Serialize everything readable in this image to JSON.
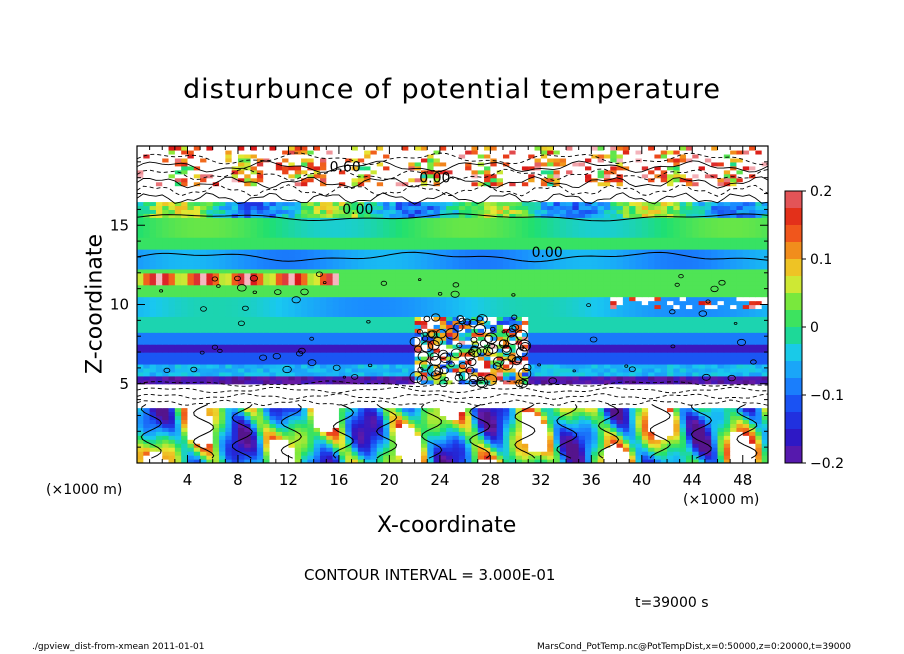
{
  "chart_data": {
    "type": "heatmap",
    "title": "disturbunce of potential temperature",
    "xlabel": "X-coordinate",
    "ylabel": "Z-coordinate",
    "x_unit": "(×1000 m)",
    "xlim": [
      0,
      50
    ],
    "ylim": [
      0,
      20
    ],
    "x_ticks": [
      4,
      8,
      12,
      16,
      20,
      24,
      28,
      32,
      36,
      40,
      44,
      48
    ],
    "y_ticks": [
      5,
      10,
      15
    ],
    "colorbar": {
      "range": [
        -0.2,
        0.2
      ],
      "tick_labels": [
        "0.2",
        "0.1",
        "0",
        "−0.1",
        "−0.2"
      ],
      "tick_values": [
        0.2,
        0.1,
        0,
        -0.1,
        -0.2
      ]
    },
    "contour_labels": [
      "0.60",
      "0.00",
      "0.00",
      "0.00"
    ],
    "colors": {
      "deep_negative": "#6a1aa0",
      "negative": "#1a28d8",
      "weak_negative": "#19a8ff",
      "near_zero": "#1fe070",
      "weak_positive": "#d6e832",
      "positive": "#f2781c",
      "strong_positive": "#f0f0f0"
    }
  },
  "annotations": {
    "contour_interval": "CONTOUR INTERVAL = 3.000E-01",
    "time": "t=39000 s",
    "footer_left": "./gpview_dist-from-xmean  2011-01-01",
    "footer_right": "MarsCond_PotTemp.nc@PotTempDist,x=0:50000,z=0:20000,t=39000"
  }
}
